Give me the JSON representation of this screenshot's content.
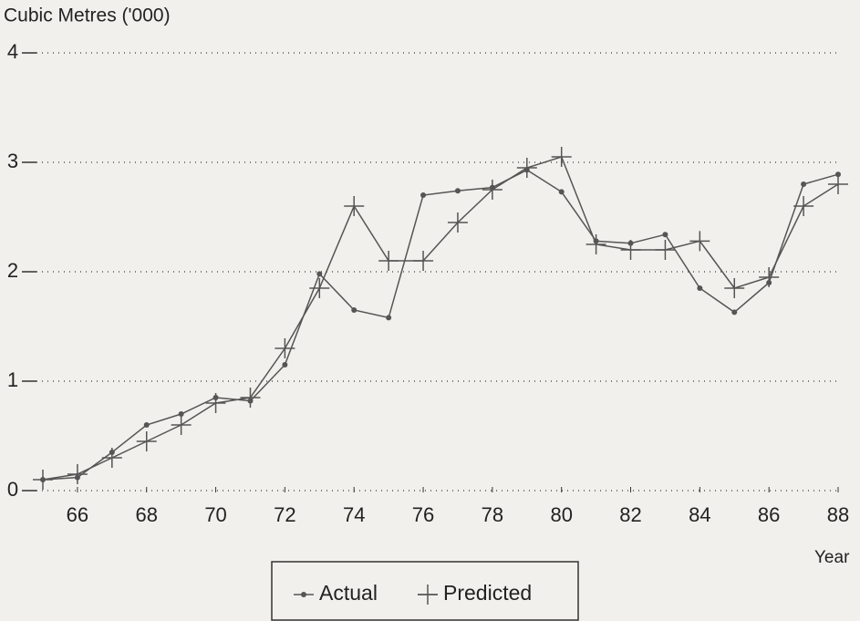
{
  "chart_data": {
    "type": "line",
    "y_label": "Cubic Metres ('000)",
    "x_label": "Year",
    "x": [
      65,
      66,
      67,
      68,
      69,
      70,
      71,
      72,
      73,
      74,
      75,
      76,
      77,
      78,
      79,
      80,
      81,
      82,
      83,
      84,
      85,
      86,
      87,
      88
    ],
    "series": [
      {
        "name": "Actual",
        "color": "#555555",
        "marker": "dot",
        "values": [
          0.1,
          0.12,
          0.35,
          0.6,
          0.7,
          0.85,
          0.82,
          1.15,
          1.98,
          1.65,
          1.58,
          2.7,
          2.74,
          2.77,
          2.93,
          2.73,
          2.28,
          2.26,
          2.34,
          1.85,
          1.63,
          1.9,
          2.8,
          2.89
        ]
      },
      {
        "name": "Predicted",
        "color": "#555555",
        "marker": "plus",
        "values": [
          0.1,
          0.15,
          0.3,
          0.45,
          0.6,
          0.8,
          0.85,
          1.3,
          1.85,
          2.6,
          2.1,
          2.1,
          2.45,
          2.75,
          2.95,
          3.05,
          2.25,
          2.2,
          2.2,
          2.28,
          1.85,
          1.95,
          2.6,
          2.8
        ]
      }
    ],
    "xlim": [
      65,
      88
    ],
    "xticks": [
      66,
      68,
      70,
      72,
      74,
      76,
      78,
      80,
      82,
      84,
      86,
      88
    ],
    "ylim": [
      0,
      4
    ],
    "yticks": [
      0,
      1,
      2,
      3,
      4
    ],
    "grid": true
  }
}
